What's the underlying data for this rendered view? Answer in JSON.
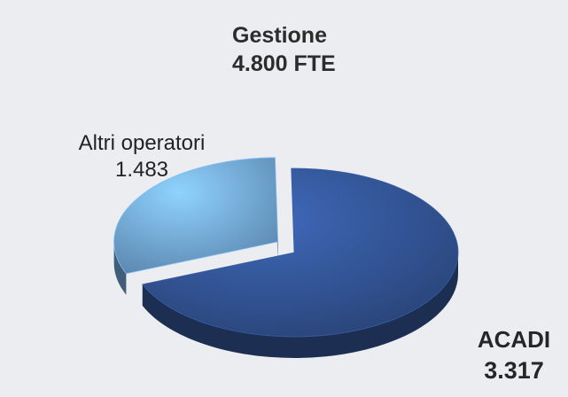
{
  "chart_data": {
    "type": "pie",
    "title": "Gestione",
    "subtitle": "4.800 FTE",
    "slices": [
      {
        "label": "ACADI",
        "value": 3317,
        "value_label": "3.317",
        "color": "#2f4e8a"
      },
      {
        "label": "Altri operatori",
        "value": 1483,
        "value_label": "1.483",
        "color": "#6a9ccb"
      }
    ],
    "three_d": true,
    "legend": "none"
  }
}
